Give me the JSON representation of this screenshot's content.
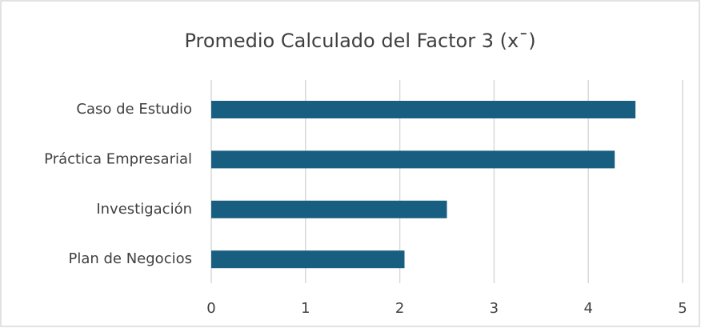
{
  "chart_data": {
    "type": "barh",
    "title": "Promedio Calculado del Factor 3 (x¯)",
    "categories": [
      "Caso de Estudio",
      "Práctica Empresarial",
      "Investigación",
      "Plan de Negocios"
    ],
    "values": [
      4.5,
      4.28,
      2.5,
      2.05
    ],
    "color": "#175e80",
    "xlim": [
      0,
      5
    ],
    "xticks": [
      0,
      1,
      2,
      3,
      4,
      5
    ],
    "grid": true
  }
}
